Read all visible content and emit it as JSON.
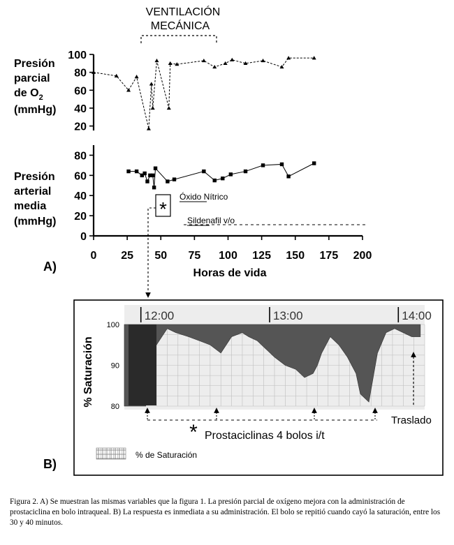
{
  "panel_a": {
    "label": "A)",
    "ventilation_label_line1": "VENTILACIÓN",
    "ventilation_label_line2": "MECÁNICA",
    "top_ylabel_line1": "Presión",
    "top_ylabel_line2": "parcial",
    "top_ylabel_line3_base": "de O",
    "top_ylabel_line3_sub": "2",
    "top_ylabel_line4": "(mmHg)",
    "bottom_ylabel_line1": "Presión",
    "bottom_ylabel_line2": "arterial",
    "bottom_ylabel_line3": "media",
    "bottom_ylabel_line4": "(mmHg)",
    "xlabel": "Horas de vida",
    "nitric_oxide_label": "Óxido Nítrico",
    "sildenafil_label": "Sildenafil v/o",
    "asterisk": "*"
  },
  "panel_b": {
    "label": "B)",
    "time_labels": [
      "12:00",
      "13:00",
      "14:00"
    ],
    "ylabel": "% Saturación",
    "yticks": [
      "100",
      "90",
      "80"
    ],
    "prostacyclin_label": "Prostaciclinas  4 bolos i/t",
    "transfer_label": "Traslado",
    "legend_label": "% de Saturación",
    "asterisk": "*"
  },
  "caption": "Figura 2. A) Se muestran las mismas variables que la figura 1. La presión parcial de oxígeno mejora con la administración de prostaciclina en bolo intraqueal. B) La respuesta es inmediata a su administración. El bolo se repitió cuando cayó la saturación, entre los 30 y 40 minutos.",
  "chart_data": [
    {
      "type": "line",
      "title": "",
      "xlabel": "Horas de vida",
      "ylabel": "Presión parcial de O2 (mmHg)",
      "xlim": [
        0,
        200
      ],
      "ylim": [
        15,
        100
      ],
      "yticks": [
        20,
        40,
        60,
        80,
        100
      ],
      "line_style": "dashed",
      "marker": "triangle",
      "series": [
        {
          "x": [
            0,
            17,
            26,
            32,
            41,
            43,
            44,
            47,
            56,
            57,
            62,
            82,
            90,
            98,
            103,
            113,
            126,
            140,
            145,
            164
          ],
          "y": [
            80,
            76,
            60,
            75,
            17,
            67,
            40,
            93,
            40,
            90,
            89,
            93,
            86,
            90,
            94,
            90,
            93,
            86,
            96,
            96
          ]
        }
      ],
      "annotations": [
        {
          "text": "VENTILACIÓN MECÁNICA",
          "x_range": [
            36,
            92
          ]
        }
      ]
    },
    {
      "type": "line",
      "title": "",
      "xlabel": "Horas de vida",
      "ylabel": "Presión arterial media (mmHg)",
      "xlim": [
        0,
        200
      ],
      "ylim": [
        0,
        90
      ],
      "xticks": [
        0,
        25,
        50,
        75,
        100,
        125,
        150,
        175,
        200
      ],
      "yticks": [
        0,
        20,
        40,
        60,
        80
      ],
      "line_style": "solid",
      "marker": "square",
      "series": [
        {
          "x": [
            26,
            32,
            36,
            38,
            40,
            42,
            44,
            45,
            46,
            55,
            60,
            82,
            90,
            96,
            102,
            113,
            126,
            140,
            145,
            164
          ],
          "y": [
            64,
            64,
            60,
            62,
            54,
            60,
            60,
            48,
            67,
            54,
            56,
            64,
            55,
            57,
            61,
            64,
            70,
            71,
            59,
            72
          ]
        }
      ],
      "annotations": [
        {
          "text": "Óxido Nítrico",
          "x_start": 66
        },
        {
          "text": "Sildenafil v/o",
          "x_start": 69,
          "x_end": 200,
          "y": 12
        }
      ]
    },
    {
      "type": "area",
      "title": "",
      "xlabel": "",
      "ylabel": "% Saturación",
      "x_tick_labels": [
        "12:00",
        "13:00",
        "14:00"
      ],
      "ylim": [
        80,
        100
      ],
      "yticks": [
        80,
        90,
        100
      ],
      "series": [
        {
          "name": "% de Saturación",
          "x_minutes_from_1150": [
            0,
            10,
            12,
            15,
            20,
            24,
            30,
            35,
            40,
            45,
            50,
            55,
            58,
            62,
            66,
            70,
            75,
            80,
            84,
            88,
            90,
            92,
            96,
            100,
            104,
            108,
            110,
            114,
            118,
            122,
            126,
            130,
            134,
            138
          ],
          "y": [
            80,
            80,
            96,
            95,
            99,
            98,
            97,
            96,
            95,
            93,
            97,
            98,
            97,
            96,
            94,
            92,
            90,
            89,
            87,
            88,
            90,
            93,
            97,
            95,
            92,
            88,
            83,
            81,
            93,
            98,
            99,
            98,
            97,
            97
          ]
        }
      ],
      "annotations": [
        {
          "text": "Prostaciclinas 4 bolos i/t",
          "markers": 4
        },
        {
          "text": "Traslado"
        }
      ]
    }
  ]
}
